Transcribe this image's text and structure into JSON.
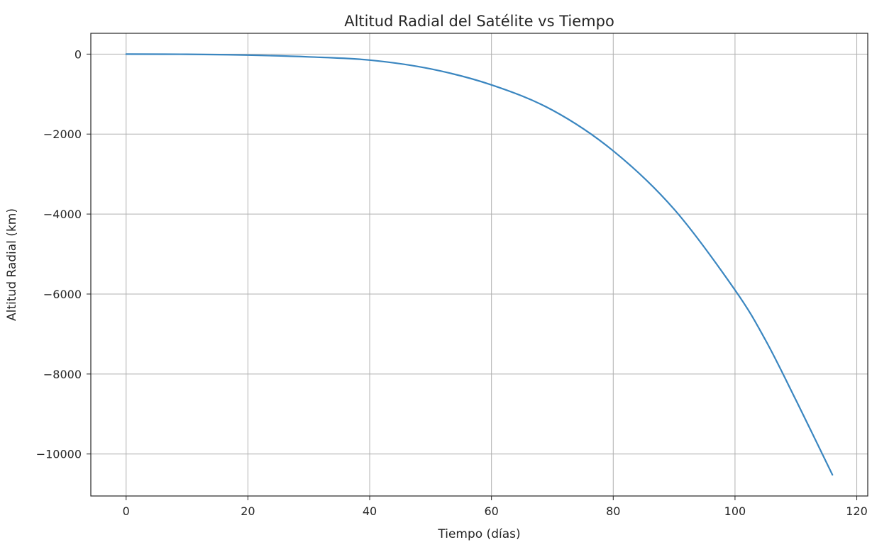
{
  "chart_data": {
    "type": "line",
    "title": "Altitud Radial del Satélite vs Tiempo",
    "xlabel": "Tiempo (días)",
    "ylabel": "Altitud Radial (km)",
    "xlim": [
      -5.8,
      121.8
    ],
    "ylim": [
      -11050,
      520
    ],
    "xticks": [
      0,
      20,
      40,
      60,
      80,
      100,
      120
    ],
    "xtick_labels": [
      "0",
      "20",
      "40",
      "60",
      "80",
      "100",
      "120"
    ],
    "yticks": [
      0,
      -2000,
      -4000,
      -6000,
      -8000,
      -10000
    ],
    "ytick_labels": [
      "0",
      "−2000",
      "−4000",
      "−6000",
      "−8000",
      "−10000"
    ],
    "grid": true,
    "series": [
      {
        "color": "#3a86c0",
        "x": [
          0,
          10,
          20,
          30,
          40,
          50,
          60,
          70,
          80,
          90,
          100,
          105,
          110,
          116
        ],
        "y": [
          0,
          -5,
          -25,
          -70,
          -150,
          -370,
          -770,
          -1400,
          -2420,
          -3880,
          -5900,
          -7150,
          -8650,
          -10520
        ]
      }
    ]
  }
}
